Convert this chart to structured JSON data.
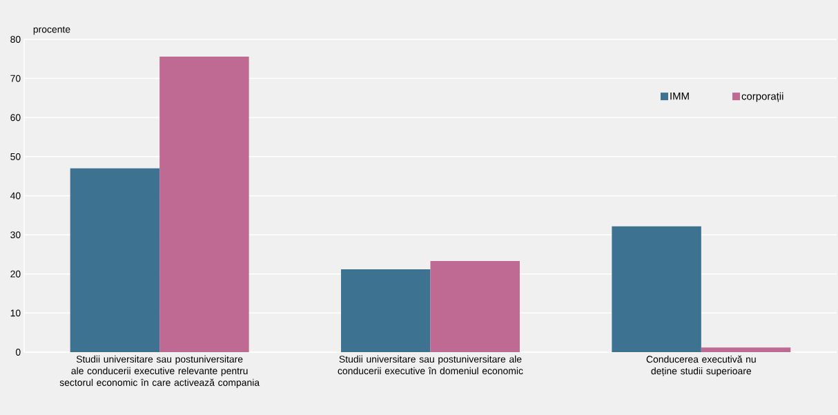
{
  "chart_data": {
    "type": "bar",
    "ylabel": "procente",
    "categories": [
      "Studii universitare sau postuniversitare ale conducerii executive relevante pentru sectorul economic în care activează compania",
      "Studii universitare sau postuniversitare ale conducerii executive în domeniul economic",
      "Conducerea executivă nu deține studii superioare"
    ],
    "series": [
      {
        "name": "IMM",
        "color": "#3d7391",
        "values": [
          47.0,
          21.2,
          32.2
        ]
      },
      {
        "name": "corporații",
        "color": "#be6a93",
        "values": [
          75.6,
          23.3,
          1.2
        ]
      }
    ],
    "ylim": [
      0,
      80
    ],
    "yticks": [
      0,
      10,
      20,
      30,
      40,
      50,
      60,
      70,
      80
    ],
    "grid": "y",
    "legend": "top right"
  }
}
